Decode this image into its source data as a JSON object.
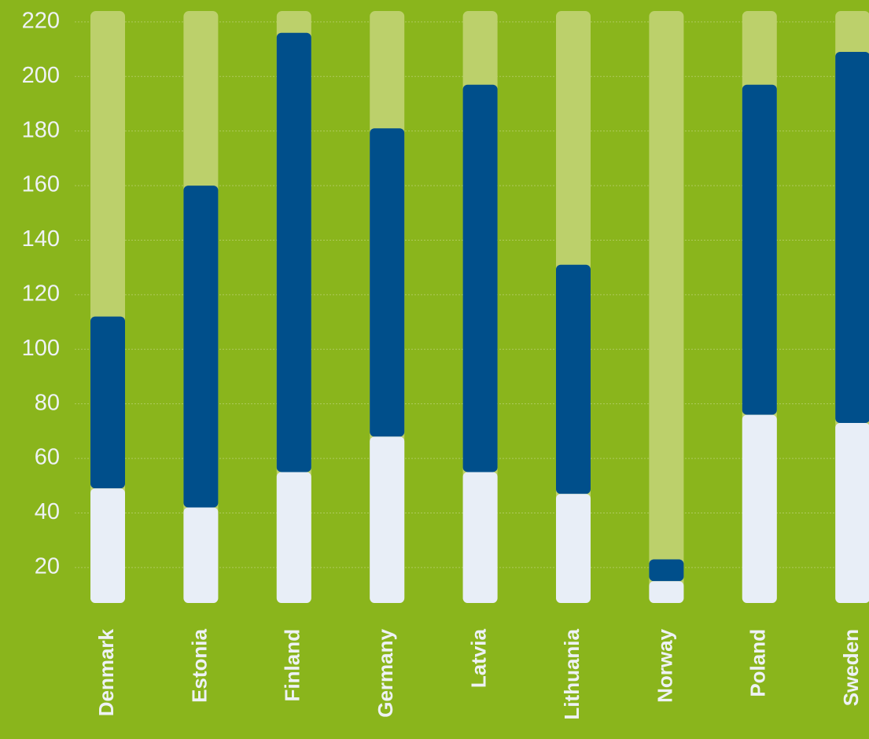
{
  "chart_data": {
    "type": "stacked_bar",
    "categories": [
      "Denmark",
      "Estonia",
      "Finland",
      "Germany",
      "Latvia",
      "Lithuania",
      "Norway",
      "Poland",
      "Sweden"
    ],
    "series": [
      {
        "color": "#e8eef7",
        "values": [
          49,
          42,
          55,
          68,
          55,
          47,
          15,
          76,
          73
        ]
      },
      {
        "color": "#004f8b",
        "values": [
          63,
          118,
          161,
          113,
          142,
          84,
          8,
          121,
          136
        ]
      }
    ],
    "track_color": "#bcd06b",
    "background": "#8ab51c",
    "ylim": [
      7,
      224
    ],
    "yticks": [
      20,
      40,
      60,
      80,
      100,
      120,
      140,
      160,
      180,
      200,
      220
    ],
    "grid": true
  }
}
